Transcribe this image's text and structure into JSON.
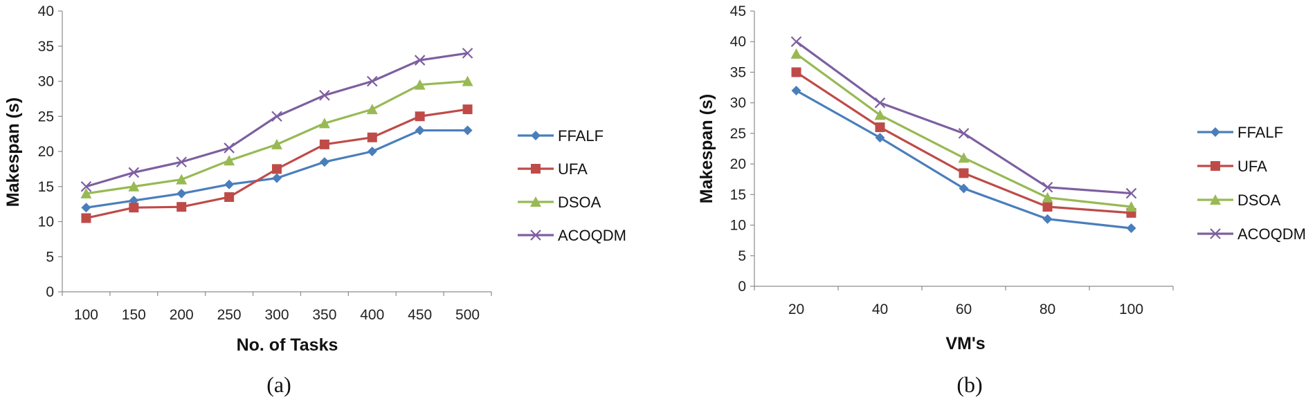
{
  "chart_data": [
    {
      "type": "line",
      "caption": "(a)",
      "xlabel": "No. of Tasks",
      "ylabel": "Makespan (s)",
      "categories": [
        "100",
        "150",
        "200",
        "250",
        "300",
        "350",
        "400",
        "450",
        "500"
      ],
      "ylim": [
        0,
        40
      ],
      "yticks": [
        "0",
        "5",
        "10",
        "15",
        "20",
        "25",
        "30",
        "35",
        "40"
      ],
      "grid": false,
      "legend_position": "right",
      "series": [
        {
          "name": "FFALF",
          "marker": "diamond",
          "color": "#4a7ebb",
          "values": [
            12,
            13,
            14,
            15.3,
            16.2,
            18.5,
            20,
            23,
            23
          ]
        },
        {
          "name": "UFA",
          "marker": "square",
          "color": "#be4b48",
          "values": [
            10.5,
            12,
            12.1,
            13.5,
            17.5,
            21,
            22,
            25,
            26
          ]
        },
        {
          "name": "DSOA",
          "marker": "triangle",
          "color": "#98b954",
          "values": [
            14,
            15,
            16,
            18.7,
            21,
            24,
            26,
            29.5,
            30
          ]
        },
        {
          "name": "ACOQDM",
          "marker": "x",
          "color": "#7d5fa0",
          "values": [
            15,
            17,
            18.5,
            20.5,
            25,
            28,
            30,
            33,
            34
          ]
        }
      ]
    },
    {
      "type": "line",
      "caption": "(b)",
      "xlabel": "VM's",
      "ylabel": "Makespan (s)",
      "categories": [
        "20",
        "40",
        "60",
        "80",
        "100"
      ],
      "ylim": [
        0,
        45
      ],
      "yticks": [
        "0",
        "5",
        "10",
        "15",
        "20",
        "25",
        "30",
        "35",
        "40",
        "45"
      ],
      "grid": false,
      "legend_position": "right",
      "series": [
        {
          "name": "FFALF",
          "marker": "diamond",
          "color": "#4a7ebb",
          "values": [
            32,
            24.3,
            16,
            11,
            9.5
          ]
        },
        {
          "name": "UFA",
          "marker": "square",
          "color": "#be4b48",
          "values": [
            35,
            26,
            18.5,
            13,
            12
          ]
        },
        {
          "name": "DSOA",
          "marker": "triangle",
          "color": "#98b954",
          "values": [
            38,
            28,
            21,
            14.5,
            13
          ]
        },
        {
          "name": "ACOQDM",
          "marker": "x",
          "color": "#7d5fa0",
          "values": [
            40,
            30,
            25,
            16.2,
            15.2
          ]
        }
      ]
    }
  ]
}
